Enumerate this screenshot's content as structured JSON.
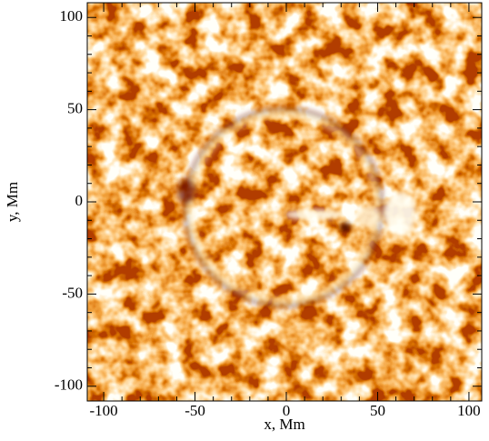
{
  "chart_data": {
    "type": "image",
    "xlabel": "x, Mm",
    "ylabel": "y, Mm",
    "xlim": [
      -109,
      107
    ],
    "ylim": [
      -108,
      108
    ],
    "xticks": [
      -100,
      -50,
      0,
      50,
      100
    ],
    "yticks": [
      -100,
      -50,
      0,
      50,
      100
    ],
    "xminorticks": [
      -90,
      -80,
      -70,
      -60,
      -40,
      -30,
      -20,
      -10,
      10,
      20,
      30,
      40,
      60,
      70,
      80,
      90
    ],
    "yminorticks": [
      -90,
      -80,
      -70,
      -60,
      -40,
      -30,
      -20,
      -10,
      10,
      20,
      30,
      40,
      60,
      70,
      80,
      90
    ]
  }
}
